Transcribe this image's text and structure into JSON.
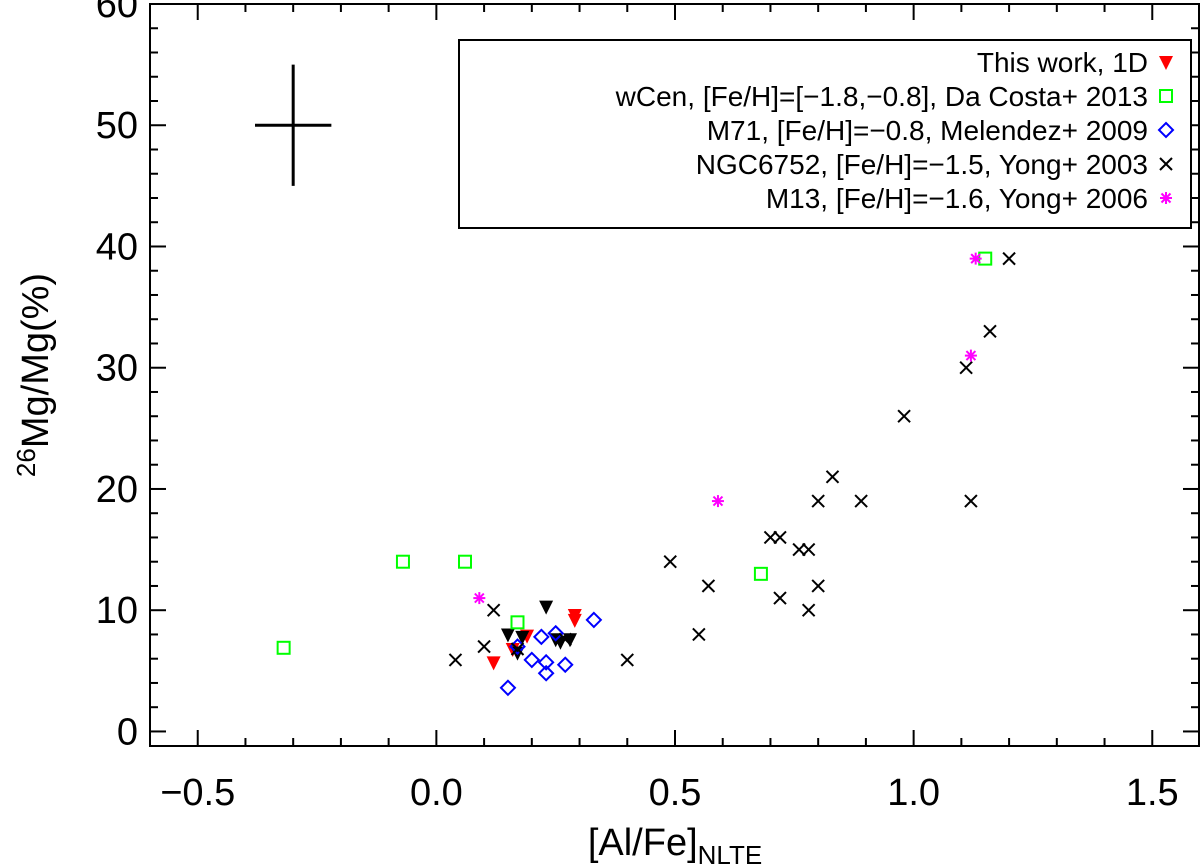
{
  "chart_data": {
    "type": "scatter",
    "xlabel": {
      "main": "[Al/Fe]",
      "sub": "NLTE"
    },
    "ylabel": {
      "sup": "26",
      "main": "Mg/Mg(%)"
    },
    "xlim": [
      -0.6,
      1.6
    ],
    "ylim": [
      -1.2,
      60
    ],
    "x_ticks": [
      -0.5,
      0.0,
      0.5,
      1.0,
      1.5
    ],
    "x_tick_labels": [
      "−0.5",
      "0.0",
      "0.5",
      "1.0",
      "1.5"
    ],
    "y_ticks": [
      0,
      10,
      20,
      30,
      40,
      50,
      60
    ],
    "y_tick_labels": [
      "0",
      "10",
      "20",
      "30",
      "40",
      "50",
      "60"
    ],
    "grid": false,
    "legend_placement": "top-right",
    "error_bar": {
      "x": -0.3,
      "y": 50,
      "xerr": 0.08,
      "yerr": 2
    },
    "series": [
      {
        "name": "This work, 1D",
        "marker": "triangle-down-filled",
        "color": "#ff0000",
        "points": [
          [
            0.12,
            5.7
          ],
          [
            0.16,
            6.8
          ],
          [
            0.19,
            7.9
          ],
          [
            0.29,
            9.2
          ],
          [
            0.29,
            9.6
          ]
        ]
      },
      {
        "name": "",
        "legend": false,
        "marker": "triangle-down-filled",
        "color": "#000000",
        "points": [
          [
            0.15,
            8.0
          ],
          [
            0.17,
            6.5
          ],
          [
            0.18,
            7.8
          ],
          [
            0.23,
            10.3
          ],
          [
            0.25,
            7.6
          ],
          [
            0.26,
            7.4
          ],
          [
            0.28,
            7.6
          ]
        ]
      },
      {
        "name": "wCen, [Fe/H]=[−1.8,−0.8], Da Costa+ 2013",
        "marker": "square-open",
        "color": "#00ff00",
        "points": [
          [
            -0.32,
            6.9
          ],
          [
            -0.07,
            14.0
          ],
          [
            0.06,
            14.0
          ],
          [
            0.17,
            9.0
          ],
          [
            0.68,
            13.0
          ],
          [
            1.15,
            39.0
          ]
        ]
      },
      {
        "name": "M71, [Fe/H]=−0.8, Melendez+ 2009",
        "marker": "diamond-open",
        "color": "#0000ff",
        "points": [
          [
            0.15,
            3.6
          ],
          [
            0.17,
            7.0
          ],
          [
            0.2,
            5.9
          ],
          [
            0.22,
            7.8
          ],
          [
            0.23,
            4.8
          ],
          [
            0.23,
            5.7
          ],
          [
            0.25,
            8.1
          ],
          [
            0.27,
            5.5
          ],
          [
            0.33,
            9.2
          ]
        ]
      },
      {
        "name": "NGC6752, [Fe/H]=−1.5, Yong+ 2003",
        "marker": "x",
        "color": "#000000",
        "points": [
          [
            0.04,
            5.9
          ],
          [
            0.1,
            7.0
          ],
          [
            0.12,
            10.0
          ],
          [
            0.17,
            6.8
          ],
          [
            0.27,
            7.6
          ],
          [
            0.4,
            5.9
          ],
          [
            0.49,
            14.0
          ],
          [
            0.55,
            8.0
          ],
          [
            0.57,
            12.0
          ],
          [
            0.7,
            16.0
          ],
          [
            0.72,
            11.0
          ],
          [
            0.72,
            16.0
          ],
          [
            0.76,
            15.0
          ],
          [
            0.78,
            15.0
          ],
          [
            0.78,
            10.0
          ],
          [
            0.8,
            19.0
          ],
          [
            0.8,
            12.0
          ],
          [
            0.83,
            21.0
          ],
          [
            0.89,
            19.0
          ],
          [
            0.98,
            26.0
          ],
          [
            1.11,
            30.0
          ],
          [
            1.12,
            19.0
          ],
          [
            1.16,
            33.0
          ],
          [
            1.2,
            39.0
          ]
        ]
      },
      {
        "name": "M13, [Fe/H]=−1.6, Yong+ 2006",
        "marker": "asterisk",
        "color": "#ff00ff",
        "points": [
          [
            0.09,
            11.0
          ],
          [
            0.59,
            19.0
          ],
          [
            1.12,
            31.0
          ],
          [
            1.13,
            39.0
          ]
        ]
      }
    ]
  }
}
